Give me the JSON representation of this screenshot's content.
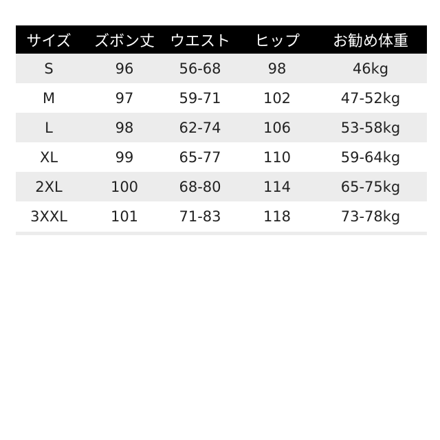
{
  "headers": [
    "サイズ",
    "ズボン丈",
    "ウエスト",
    "ヒップ",
    "お勧め体重"
  ],
  "rows": [
    [
      "S",
      "96",
      "56-68",
      "98",
      "46kg"
    ],
    [
      "M",
      "97",
      "59-71",
      "102",
      "47-52kg"
    ],
    [
      "L",
      "98",
      "62-74",
      "106",
      "53-58kg"
    ],
    [
      "XL",
      "99",
      "65-77",
      "110",
      "59-64kg"
    ],
    [
      "2XL",
      "100",
      "68-80",
      "114",
      "65-75kg"
    ],
    [
      "3XXL",
      "101",
      "71-83",
      "118",
      "73-78kg"
    ]
  ],
  "colors": {
    "header_bg": "#000000",
    "header_text": "#ffffff",
    "alt_row": "#ececec"
  }
}
